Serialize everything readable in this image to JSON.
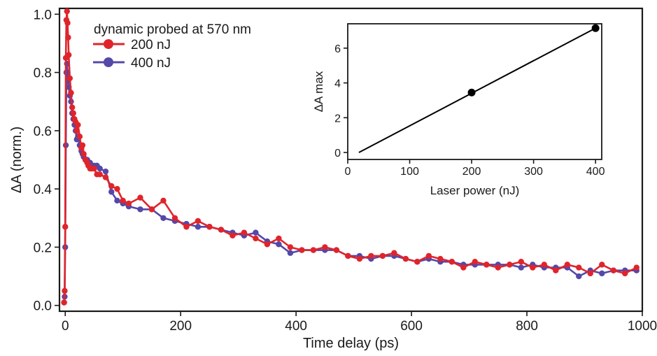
{
  "chart_data": [
    {
      "type": "line",
      "xlabel": "Time delay (ps)",
      "ylabel": "ΔA (norm.)",
      "xlim": [
        -10,
        1000
      ],
      "ylim": [
        -0.02,
        1.02
      ],
      "xticks": [
        0,
        200,
        400,
        600,
        800,
        1000
      ],
      "yticks": [
        0.0,
        0.2,
        0.4,
        0.6,
        0.8,
        1.0
      ],
      "xtick_labels": [
        "0",
        "200",
        "400",
        "600",
        "800",
        "1000"
      ],
      "ytick_labels": [
        "0.0",
        "0.2",
        "0.4",
        "0.6",
        "0.8",
        "1.0"
      ],
      "legend": {
        "title": "dynamic probed at 570 nm",
        "placement": "top-left"
      },
      "grid": false,
      "series": [
        {
          "name": "400 nJ",
          "color": "#5448a8",
          "x": [
            -2,
            -1,
            0,
            1,
            2,
            3,
            4,
            5,
            6,
            8,
            10,
            12,
            14,
            16,
            18,
            20,
            22,
            25,
            28,
            30,
            32,
            35,
            38,
            40,
            43,
            46,
            50,
            55,
            60,
            70,
            80,
            90,
            100,
            110,
            130,
            150,
            170,
            190,
            210,
            230,
            250,
            270,
            290,
            310,
            330,
            350,
            370,
            390,
            410,
            430,
            450,
            470,
            490,
            510,
            530,
            550,
            570,
            590,
            610,
            630,
            650,
            670,
            690,
            710,
            730,
            750,
            770,
            790,
            810,
            830,
            850,
            870,
            890,
            910,
            930,
            950,
            970,
            990
          ],
          "y": [
            0.01,
            0.03,
            0.2,
            0.55,
            0.8,
            0.83,
            0.8,
            0.77,
            0.75,
            0.72,
            0.7,
            0.66,
            0.64,
            0.62,
            0.6,
            0.57,
            0.58,
            0.55,
            0.53,
            0.52,
            0.51,
            0.5,
            0.5,
            0.49,
            0.49,
            0.48,
            0.48,
            0.48,
            0.47,
            0.46,
            0.39,
            0.36,
            0.35,
            0.34,
            0.33,
            0.33,
            0.3,
            0.29,
            0.28,
            0.27,
            0.27,
            0.26,
            0.25,
            0.24,
            0.25,
            0.22,
            0.21,
            0.18,
            0.19,
            0.19,
            0.19,
            0.19,
            0.17,
            0.17,
            0.16,
            0.17,
            0.17,
            0.16,
            0.15,
            0.16,
            0.15,
            0.15,
            0.14,
            0.14,
            0.14,
            0.14,
            0.14,
            0.13,
            0.14,
            0.13,
            0.13,
            0.13,
            0.1,
            0.12,
            0.11,
            0.12,
            0.12,
            0.12
          ]
        },
        {
          "name": "200 nJ",
          "color": "#e0242b",
          "x": [
            -2,
            -1,
            0,
            1,
            2,
            3,
            4,
            5,
            6,
            8,
            10,
            12,
            14,
            16,
            18,
            20,
            22,
            25,
            28,
            30,
            32,
            35,
            38,
            40,
            43,
            46,
            50,
            55,
            60,
            70,
            80,
            90,
            100,
            110,
            130,
            150,
            170,
            190,
            210,
            230,
            250,
            270,
            290,
            310,
            330,
            350,
            370,
            390,
            410,
            430,
            450,
            470,
            490,
            510,
            530,
            550,
            570,
            590,
            610,
            630,
            650,
            670,
            690,
            710,
            730,
            750,
            770,
            790,
            810,
            830,
            850,
            870,
            890,
            910,
            930,
            950,
            970,
            990
          ],
          "y": [
            0.01,
            0.05,
            0.27,
            0.85,
            0.98,
            1.01,
            0.97,
            0.92,
            0.86,
            0.78,
            0.73,
            0.68,
            0.66,
            0.64,
            0.63,
            0.6,
            0.62,
            0.58,
            0.54,
            0.55,
            0.52,
            0.5,
            0.49,
            0.48,
            0.47,
            0.47,
            0.47,
            0.45,
            0.45,
            0.44,
            0.41,
            0.4,
            0.36,
            0.35,
            0.37,
            0.33,
            0.36,
            0.3,
            0.27,
            0.29,
            0.27,
            0.26,
            0.24,
            0.25,
            0.23,
            0.21,
            0.23,
            0.2,
            0.19,
            0.19,
            0.2,
            0.19,
            0.17,
            0.16,
            0.17,
            0.17,
            0.18,
            0.16,
            0.15,
            0.17,
            0.16,
            0.15,
            0.13,
            0.15,
            0.14,
            0.13,
            0.14,
            0.15,
            0.13,
            0.14,
            0.12,
            0.14,
            0.13,
            0.11,
            0.14,
            0.12,
            0.11,
            0.13
          ]
        }
      ]
    },
    {
      "type": "scatter",
      "xlabel": "Laser power (nJ)",
      "ylabel": "ΔA max",
      "xlim": [
        0,
        410
      ],
      "ylim": [
        -0.4,
        7.4
      ],
      "xticks": [
        0,
        100,
        200,
        300,
        400
      ],
      "yticks": [
        0,
        2,
        4,
        6
      ],
      "xtick_labels": [
        "0",
        "100",
        "200",
        "300",
        "400"
      ],
      "ytick_labels": [
        "0",
        "2",
        "4",
        "6"
      ],
      "grid": false,
      "points": {
        "x": [
          200,
          400
        ],
        "y": [
          3.45,
          7.15
        ],
        "color": "#000000"
      },
      "fit_line": {
        "x": [
          18,
          400
        ],
        "y": [
          0.0,
          7.15
        ],
        "color": "#000000"
      }
    }
  ]
}
